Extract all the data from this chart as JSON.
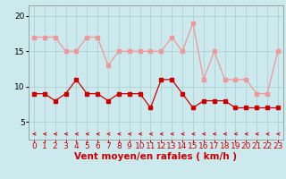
{
  "x": [
    0,
    1,
    2,
    3,
    4,
    5,
    6,
    7,
    8,
    9,
    10,
    11,
    12,
    13,
    14,
    15,
    16,
    17,
    18,
    19,
    20,
    21,
    22,
    23
  ],
  "wind_avg": [
    9,
    9,
    8,
    9,
    11,
    9,
    9,
    8,
    9,
    9,
    9,
    7,
    11,
    11,
    9,
    7,
    8,
    8,
    8,
    7,
    7,
    7,
    7,
    7
  ],
  "wind_gust": [
    17,
    17,
    17,
    15,
    15,
    17,
    17,
    13,
    15,
    15,
    15,
    15,
    15,
    17,
    15,
    19,
    11,
    15,
    11,
    11,
    11,
    9,
    9,
    15
  ],
  "bg_color": "#cce9ee",
  "grid_color": "#aacccc",
  "avg_color": "#cc0000",
  "gust_color": "#ee9999",
  "arrow_color": "#cc0000",
  "xlabel": "Vent moyen/en rafales ( km/h )",
  "xlabel_color": "#cc0000",
  "ylabel_ticks": [
    5,
    10,
    15,
    20
  ],
  "ylim": [
    2.5,
    21.5
  ],
  "xlim": [
    -0.5,
    23.5
  ],
  "tick_fontsize": 6.5,
  "xlabel_fontsize": 7.5
}
